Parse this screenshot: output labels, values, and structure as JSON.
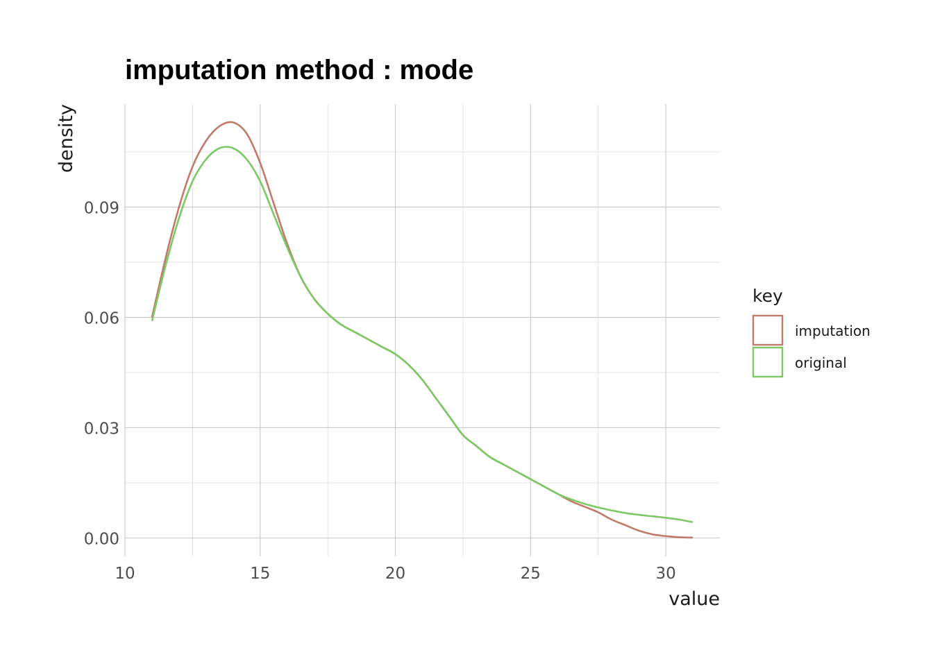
{
  "chart_data": {
    "type": "line",
    "title": "imputation method : mode",
    "xlabel": "value",
    "ylabel": "density",
    "xlim": [
      10,
      32
    ],
    "ylim": [
      -0.005,
      0.118
    ],
    "x_ticks": [
      10,
      15,
      20,
      25,
      30
    ],
    "x_tick_labels": [
      "10",
      "15",
      "20",
      "25",
      "30"
    ],
    "y_ticks": [
      0.0,
      0.03,
      0.06,
      0.09
    ],
    "y_tick_labels": [
      "0.00",
      "0.03",
      "0.06",
      "0.09"
    ],
    "grid": true,
    "legend": {
      "title": "key",
      "position": "right"
    },
    "series": [
      {
        "name": "imputation",
        "color": "#c07a6a",
        "x": [
          11,
          11.5,
          12,
          12.5,
          13,
          13.5,
          14,
          14.5,
          15,
          15.5,
          16,
          16.5,
          17,
          17.5,
          18,
          18.5,
          19,
          19.5,
          20,
          20.5,
          21,
          21.5,
          22,
          22.5,
          23,
          23.5,
          24,
          24.5,
          25,
          25.5,
          26,
          26.5,
          27,
          27.5,
          28,
          28.5,
          29,
          29.5,
          30,
          30.5,
          31
        ],
        "y": [
          0.06,
          0.076,
          0.09,
          0.101,
          0.108,
          0.112,
          0.113,
          0.11,
          0.102,
          0.091,
          0.08,
          0.071,
          0.065,
          0.061,
          0.058,
          0.056,
          0.054,
          0.052,
          0.05,
          0.047,
          0.043,
          0.038,
          0.033,
          0.028,
          0.025,
          0.022,
          0.02,
          0.018,
          0.016,
          0.014,
          0.012,
          0.01,
          0.0085,
          0.007,
          0.005,
          0.0035,
          0.002,
          0.001,
          0.0005,
          0.0002,
          0.0001
        ]
      },
      {
        "name": "original",
        "color": "#7cc865",
        "x": [
          11,
          11.5,
          12,
          12.5,
          13,
          13.5,
          14,
          14.5,
          15,
          15.5,
          16,
          16.5,
          17,
          17.5,
          18,
          18.5,
          19,
          19.5,
          20,
          20.5,
          21,
          21.5,
          22,
          22.5,
          23,
          23.5,
          24,
          24.5,
          25,
          25.5,
          26,
          26.5,
          27,
          27.5,
          28,
          28.5,
          29,
          29.5,
          30,
          30.5,
          31
        ],
        "y": [
          0.059,
          0.074,
          0.087,
          0.097,
          0.103,
          0.106,
          0.106,
          0.103,
          0.097,
          0.088,
          0.079,
          0.071,
          0.065,
          0.061,
          0.058,
          0.056,
          0.054,
          0.052,
          0.05,
          0.047,
          0.043,
          0.038,
          0.033,
          0.028,
          0.025,
          0.022,
          0.02,
          0.018,
          0.016,
          0.014,
          0.012,
          0.0105,
          0.0093,
          0.0083,
          0.0075,
          0.0068,
          0.0063,
          0.0059,
          0.0055,
          0.005,
          0.0043
        ]
      }
    ]
  }
}
